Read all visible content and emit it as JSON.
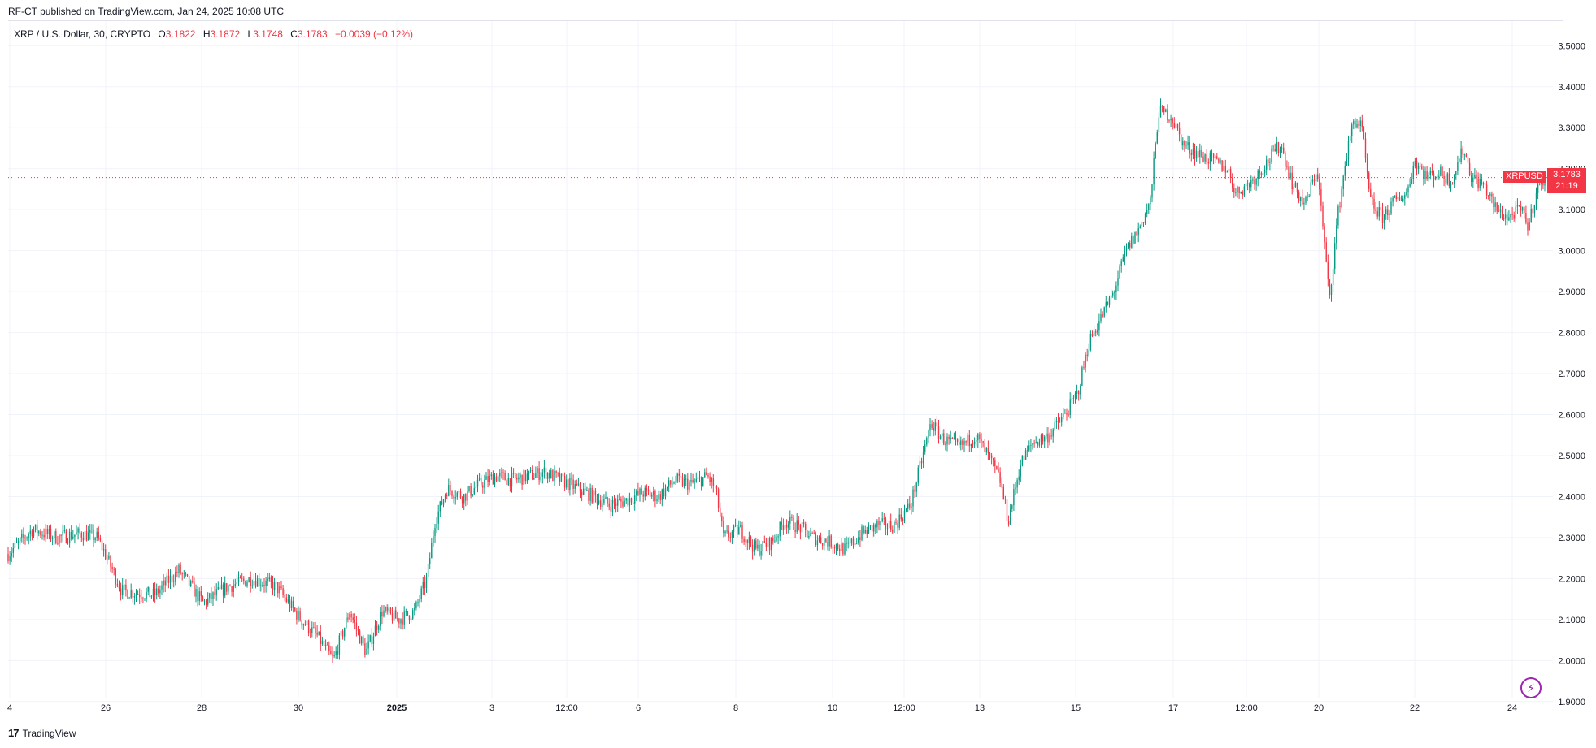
{
  "header": {
    "publish_line": "RF-CT published on TradingView.com, Jan 24, 2025 10:08 UTC"
  },
  "legend": {
    "symbol_line": "XRP / U.S. Dollar, 30, CRYPTO",
    "open_label": "O",
    "open_value": "3.1822",
    "high_label": "H",
    "high_value": "3.1872",
    "low_label": "L",
    "low_value": "3.1748",
    "close_label": "C",
    "close_value": "3.1783",
    "change": "−0.0039 (−0.12%)"
  },
  "price_tag": {
    "symbol": "XRPUSD",
    "price": "3.1783",
    "countdown": "21:19"
  },
  "footer": {
    "brand": "TradingView"
  },
  "colors": {
    "up": "#089981",
    "down": "#f23645",
    "grid": "#f0f3fa",
    "price_line": "#f23645"
  },
  "chart_data": {
    "type": "candlestick",
    "interval": "30",
    "symbol": "XRPUSD",
    "ylim": [
      1.86,
      3.56
    ],
    "y_ticks": [
      "3.5000",
      "3.4000",
      "3.3000",
      "3.2000",
      "3.1000",
      "3.0000",
      "2.9000",
      "2.8000",
      "2.7000",
      "2.6000",
      "2.5000",
      "2.4000",
      "2.3000",
      "2.2000",
      "2.1000",
      "2.0000",
      "1.9000"
    ],
    "x_ticks": [
      {
        "label": "4",
        "bold": false
      },
      {
        "label": "26",
        "bold": false
      },
      {
        "label": "28",
        "bold": false
      },
      {
        "label": "30",
        "bold": false
      },
      {
        "label": "2025",
        "bold": true
      },
      {
        "label": "3",
        "bold": false
      },
      {
        "label": "12:00",
        "bold": false
      },
      {
        "label": "6",
        "bold": false
      },
      {
        "label": "8",
        "bold": false
      },
      {
        "label": "10",
        "bold": false
      },
      {
        "label": "12:00",
        "bold": false
      },
      {
        "label": "13",
        "bold": false
      },
      {
        "label": "15",
        "bold": false
      },
      {
        "label": "17",
        "bold": false
      },
      {
        "label": "12:00",
        "bold": false
      },
      {
        "label": "20",
        "bold": false
      },
      {
        "label": "22",
        "bold": false
      },
      {
        "label": "24",
        "bold": false
      }
    ],
    "last_price": 3.1783,
    "close_path": [
      [
        0,
        2.26
      ],
      [
        30,
        2.32
      ],
      [
        60,
        2.3
      ],
      [
        90,
        2.31
      ],
      [
        110,
        2.3
      ],
      [
        140,
        2.17
      ],
      [
        180,
        2.16
      ],
      [
        210,
        2.22
      ],
      [
        240,
        2.14
      ],
      [
        270,
        2.18
      ],
      [
        300,
        2.2
      ],
      [
        330,
        2.18
      ],
      [
        360,
        2.1
      ],
      [
        380,
        2.06
      ],
      [
        400,
        2.0
      ],
      [
        420,
        2.12
      ],
      [
        440,
        2.02
      ],
      [
        460,
        2.12
      ],
      [
        480,
        2.1
      ],
      [
        500,
        2.12
      ],
      [
        515,
        2.2
      ],
      [
        525,
        2.34
      ],
      [
        540,
        2.42
      ],
      [
        560,
        2.4
      ],
      [
        580,
        2.43
      ],
      [
        600,
        2.45
      ],
      [
        620,
        2.44
      ],
      [
        640,
        2.45
      ],
      [
        660,
        2.46
      ],
      [
        680,
        2.44
      ],
      [
        700,
        2.42
      ],
      [
        720,
        2.4
      ],
      [
        740,
        2.38
      ],
      [
        760,
        2.39
      ],
      [
        780,
        2.41
      ],
      [
        800,
        2.4
      ],
      [
        820,
        2.44
      ],
      [
        840,
        2.43
      ],
      [
        860,
        2.45
      ],
      [
        870,
        2.42
      ],
      [
        880,
        2.3
      ],
      [
        900,
        2.32
      ],
      [
        920,
        2.27
      ],
      [
        940,
        2.29
      ],
      [
        955,
        2.34
      ],
      [
        970,
        2.33
      ],
      [
        990,
        2.3
      ],
      [
        1010,
        2.29
      ],
      [
        1030,
        2.27
      ],
      [
        1050,
        2.31
      ],
      [
        1070,
        2.33
      ],
      [
        1090,
        2.33
      ],
      [
        1110,
        2.38
      ],
      [
        1125,
        2.5
      ],
      [
        1135,
        2.58
      ],
      [
        1150,
        2.54
      ],
      [
        1170,
        2.52
      ],
      [
        1190,
        2.55
      ],
      [
        1205,
        2.5
      ],
      [
        1220,
        2.44
      ],
      [
        1230,
        2.34
      ],
      [
        1245,
        2.48
      ],
      [
        1260,
        2.53
      ],
      [
        1280,
        2.55
      ],
      [
        1300,
        2.6
      ],
      [
        1315,
        2.65
      ],
      [
        1330,
        2.78
      ],
      [
        1345,
        2.84
      ],
      [
        1360,
        2.9
      ],
      [
        1375,
        3.0
      ],
      [
        1390,
        3.05
      ],
      [
        1405,
        3.12
      ],
      [
        1415,
        3.34
      ],
      [
        1430,
        3.33
      ],
      [
        1445,
        3.26
      ],
      [
        1460,
        3.24
      ],
      [
        1480,
        3.22
      ],
      [
        1500,
        3.2
      ],
      [
        1510,
        3.14
      ],
      [
        1530,
        3.17
      ],
      [
        1550,
        3.22
      ],
      [
        1565,
        3.26
      ],
      [
        1580,
        3.16
      ],
      [
        1595,
        3.11
      ],
      [
        1610,
        3.2
      ],
      [
        1618,
        3.04
      ],
      [
        1625,
        2.88
      ],
      [
        1635,
        3.08
      ],
      [
        1645,
        3.22
      ],
      [
        1655,
        3.32
      ],
      [
        1665,
        3.3
      ],
      [
        1675,
        3.12
      ],
      [
        1690,
        3.08
      ],
      [
        1705,
        3.12
      ],
      [
        1720,
        3.14
      ],
      [
        1730,
        3.22
      ],
      [
        1745,
        3.18
      ],
      [
        1760,
        3.19
      ],
      [
        1775,
        3.17
      ],
      [
        1790,
        3.25
      ],
      [
        1800,
        3.18
      ],
      [
        1815,
        3.16
      ],
      [
        1830,
        3.1
      ],
      [
        1845,
        3.08
      ],
      [
        1860,
        3.1
      ],
      [
        1870,
        3.06
      ],
      [
        1880,
        3.15
      ],
      [
        1890,
        3.18
      ]
    ]
  }
}
